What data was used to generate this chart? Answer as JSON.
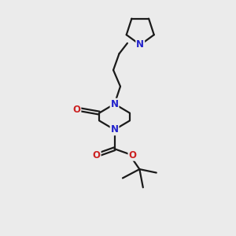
{
  "bg_color": "#ebebeb",
  "bond_color": "#1a1a1a",
  "n_color": "#2222cc",
  "o_color": "#cc2222",
  "line_width": 1.6,
  "font_size_atom": 8.5,
  "figsize": [
    3.0,
    3.0
  ],
  "dpi": 100,
  "xlim": [
    0,
    10
  ],
  "ylim": [
    0,
    10
  ]
}
